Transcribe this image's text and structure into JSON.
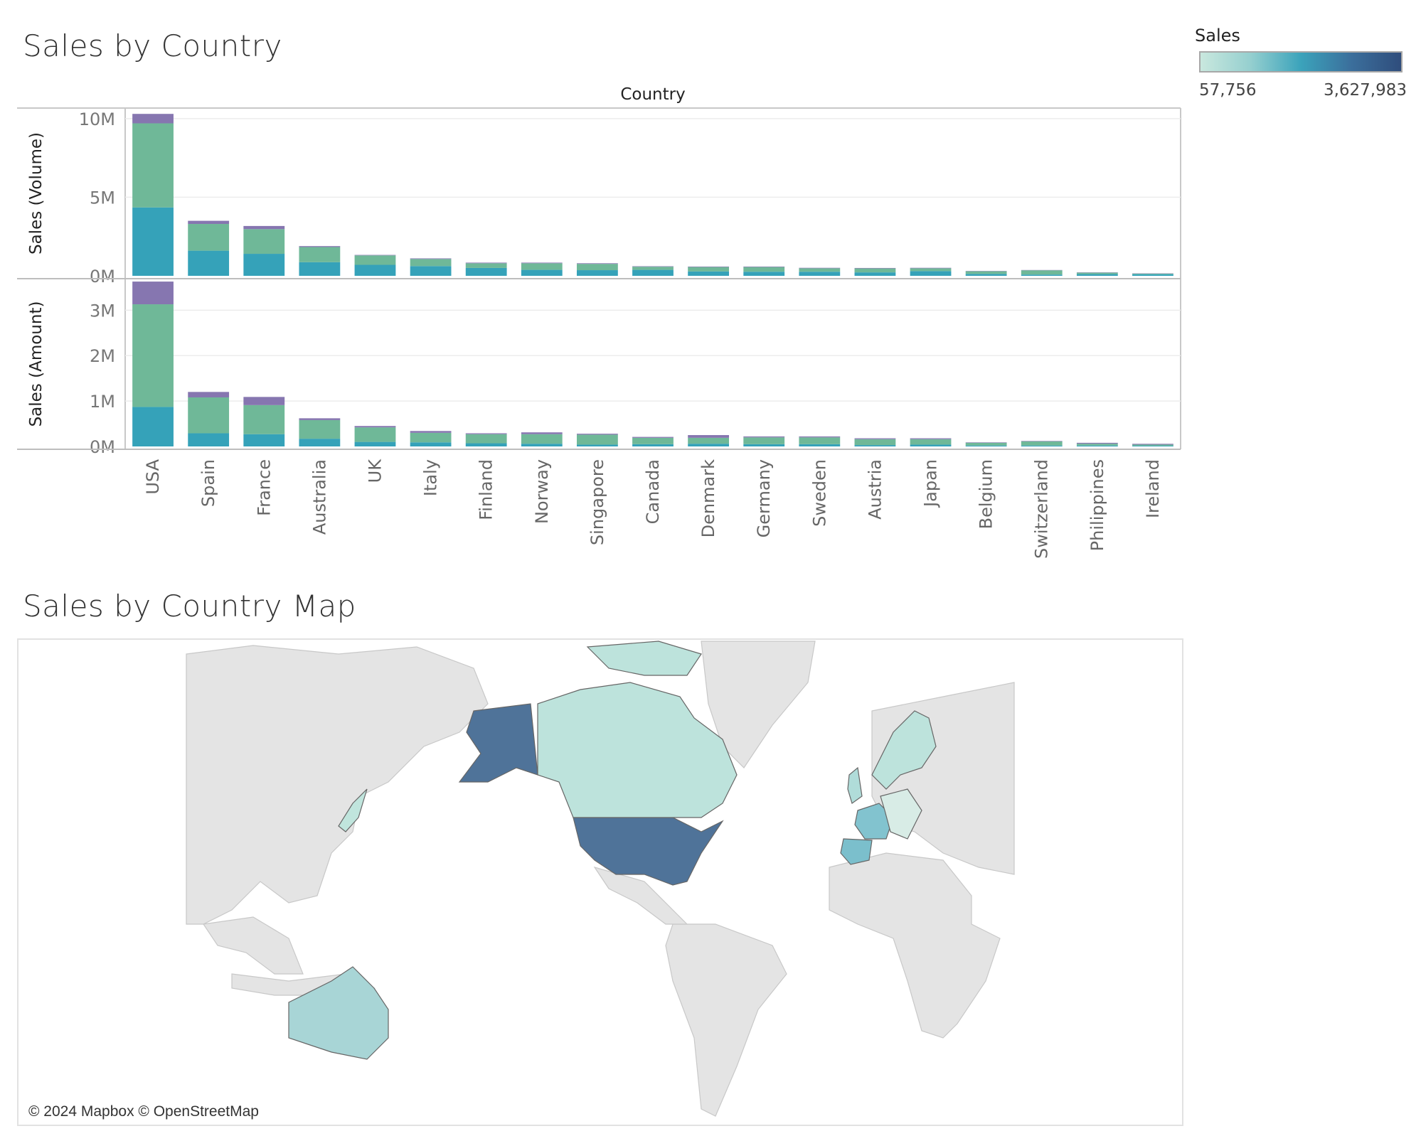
{
  "chart_title": "Sales by Country",
  "map_title": "Sales by Country Map",
  "legend": {
    "title": "Sales",
    "min_label": "57,756",
    "max_label": "3,627,983",
    "colors": [
      "#c9e8de",
      "#95cfcf",
      "#3ba3bb",
      "#3b6f9c",
      "#2f4d7c"
    ]
  },
  "map": {
    "attribution": "© 2024 Mapbox © OpenStreetMap",
    "land_color": "#e4e4e4",
    "highlighted_countries": [
      {
        "name": "USA",
        "color": "#4f7399"
      },
      {
        "name": "Canada",
        "color": "#bde3dc"
      },
      {
        "name": "Australia",
        "color": "#a8d5d6"
      },
      {
        "name": "Spain",
        "color": "#7bbfcc"
      },
      {
        "name": "France",
        "color": "#82c3cf"
      },
      {
        "name": "UK",
        "color": "#b0dcd9"
      },
      {
        "name": "Norway",
        "color": "#bde3dc"
      },
      {
        "name": "Sweden",
        "color": "#bde3dc"
      },
      {
        "name": "Finland",
        "color": "#bde3dc"
      },
      {
        "name": "Japan",
        "color": "#c0e5dd"
      }
    ]
  },
  "chart_data": {
    "type": "bar",
    "stacked": true,
    "column_header": "Country",
    "categories": [
      "USA",
      "Spain",
      "France",
      "Australia",
      "UK",
      "Italy",
      "Finland",
      "Norway",
      "Singapore",
      "Canada",
      "Denmark",
      "Germany",
      "Sweden",
      "Austria",
      "Japan",
      "Belgium",
      "Switzerland",
      "Philippines",
      "Ireland"
    ],
    "panels": [
      {
        "ylabel": "Sales (Volume)",
        "ylim": [
          0,
          10400000
        ],
        "ticks": [
          {
            "value": 0,
            "label": "0M"
          },
          {
            "value": 5000000,
            "label": "5M"
          },
          {
            "value": 10000000,
            "label": "10M"
          }
        ],
        "series": [
          {
            "color": "#35a2b9",
            "values": [
              4350000,
              1600000,
              1400000,
              870000,
              700000,
              620000,
              500000,
              380000,
              360000,
              380000,
              280000,
              260000,
              260000,
              220000,
              300000,
              120000,
              80000,
              110000,
              100000
            ]
          },
          {
            "color": "#6fb898",
            "values": [
              5350000,
              1700000,
              1570000,
              960000,
              600000,
              450000,
              300000,
              420000,
              400000,
              200000,
              280000,
              300000,
              220000,
              250000,
              180000,
              170000,
              270000,
              90000,
              40000
            ]
          },
          {
            "color": "#8676b0",
            "values": [
              600000,
              200000,
              200000,
              60000,
              30000,
              40000,
              40000,
              40000,
              40000,
              30000,
              30000,
              30000,
              30000,
              30000,
              30000,
              20000,
              20000,
              20000,
              20000
            ]
          }
        ]
      },
      {
        "ylabel": "Sales (Amount)",
        "ylim": [
          0,
          3600000
        ],
        "ticks": [
          {
            "value": 0,
            "label": "0M"
          },
          {
            "value": 1000000,
            "label": "1M"
          },
          {
            "value": 2000000,
            "label": "2M"
          },
          {
            "value": 3000000,
            "label": "3M"
          }
        ],
        "series": [
          {
            "color": "#35a2b9",
            "values": [
              870000,
              290000,
              270000,
              170000,
              100000,
              90000,
              70000,
              60000,
              40000,
              50000,
              60000,
              50000,
              50000,
              30000,
              40000,
              20000,
              20000,
              20000,
              15000
            ]
          },
          {
            "color": "#6fb898",
            "values": [
              2260000,
              790000,
              640000,
              410000,
              320000,
              210000,
              200000,
              210000,
              220000,
              140000,
              130000,
              150000,
              150000,
              130000,
              120000,
              60000,
              90000,
              40000,
              25000
            ]
          },
          {
            "color": "#8676b0",
            "values": [
              500000,
              120000,
              180000,
              40000,
              30000,
              40000,
              20000,
              40000,
              20000,
              20000,
              60000,
              20000,
              20000,
              20000,
              20000,
              10000,
              10000,
              20000,
              17756
            ]
          }
        ]
      }
    ]
  }
}
